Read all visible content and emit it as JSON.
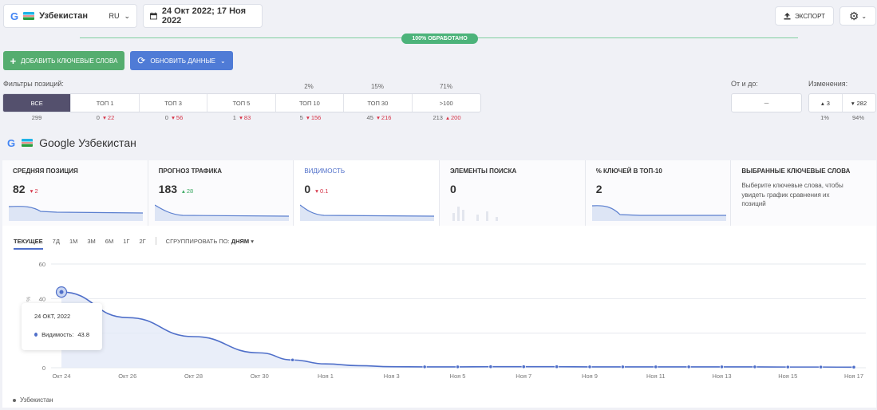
{
  "topbar": {
    "engine_logo": "G",
    "region": "Узбекистан",
    "lang": "RU",
    "date_range": "24 Окт 2022; 17 Ноя 2022",
    "export_label": "ЭКСПОРТ"
  },
  "progress": {
    "label": "100% ОБРАБОТАНО",
    "value_percent": 100
  },
  "actions": {
    "add_keywords": "ДОБАВИТЬ КЛЮЧЕВЫЕ СЛОВА",
    "update_data": "ОБНОВИТЬ ДАННЫЕ"
  },
  "filters": {
    "title": "Фильтры позиций:",
    "percents": [
      "2%",
      "15%",
      "71%"
    ],
    "items": [
      {
        "label": "ВСЕ",
        "count": "299",
        "change": ""
      },
      {
        "label": "ТОП 1",
        "count": "0",
        "change": "22"
      },
      {
        "label": "ТОП 3",
        "count": "0",
        "change": "56"
      },
      {
        "label": "ТОП 5",
        "count": "1",
        "change": "83"
      },
      {
        "label": "ТОП 10",
        "count": "5",
        "change": "156"
      },
      {
        "label": "ТОП 30",
        "count": "45",
        "change": "216"
      },
      {
        "label": ">100",
        "count": "213",
        "change": "200"
      }
    ],
    "range_label": "От и до:",
    "range_sep": "–",
    "changes_label": "Изменения:",
    "changes": [
      {
        "value": "3",
        "percent": "1%"
      },
      {
        "value": "282",
        "percent": "94%"
      }
    ]
  },
  "engine_title": "Google Узбекистан",
  "metrics": [
    {
      "title": "СРЕДНЯЯ ПОЗИЦИЯ",
      "value": "82",
      "change": "2",
      "dir": "down"
    },
    {
      "title": "ПРОГНОЗ ТРАФИКА",
      "value": "183",
      "change": "28",
      "dir": "up"
    },
    {
      "title": "ВИДИМОСТЬ",
      "value": "0",
      "change": "0.1",
      "dir": "down"
    },
    {
      "title": "ЭЛЕМЕНТЫ ПОИСКА",
      "value": "0",
      "change": "",
      "dir": ""
    },
    {
      "title": "% КЛЮЧЕЙ В ТОП-10",
      "value": "2",
      "change": "",
      "dir": ""
    },
    {
      "title": "ВЫБРАННЫЕ КЛЮЧЕВЫЕ СЛОВА",
      "desc": "Выберите ключевые слова, чтобы увидеть график сравнения их позиций"
    }
  ],
  "periods": [
    "ТЕКУЩЕЕ",
    "7Д",
    "1М",
    "3М",
    "6М",
    "1Г",
    "2Г"
  ],
  "group_by": {
    "label": "СГРУППИРОВАТЬ ПО:",
    "value": "ДНЯМ"
  },
  "tooltip": {
    "date": "24 ОКТ, 2022",
    "series": "Видимость:",
    "value": "43.8"
  },
  "colors": {
    "accent": "#4f6fc9",
    "green": "#55ad6f",
    "filter_active": "#54506d",
    "down": "#d63447",
    "up": "#3aa862"
  },
  "chart_data": {
    "type": "area",
    "ylabel": "%",
    "ylim": [
      0,
      60
    ],
    "yticks": [
      0,
      20,
      40,
      60
    ],
    "x_labels": [
      "Окт 24",
      "Окт 26",
      "Окт 28",
      "Окт 30",
      "Ноя 1",
      "Ноя 3",
      "Ноя 5",
      "Ноя 7",
      "Ноя 9",
      "Ноя 11",
      "Ноя 13",
      "Ноя 15",
      "Ноя 17"
    ],
    "grid": true,
    "legend": "bottom-left",
    "series": [
      {
        "name": "Узбекистан",
        "x": [
          0,
          4,
          8,
          12,
          14,
          16,
          18,
          20,
          22,
          24,
          26,
          28,
          30,
          32,
          34,
          36,
          38,
          40,
          42,
          44,
          46,
          48
        ],
        "values": [
          43.8,
          29,
          18,
          8.6,
          4.5,
          2.2,
          1.2,
          0.6,
          0.5,
          0.5,
          0.6,
          0.6,
          0.6,
          0.5,
          0.5,
          0.5,
          0.5,
          0.5,
          0.5,
          0.4,
          0.4,
          0.3
        ]
      }
    ],
    "markers_x": [
      0,
      14,
      22,
      24,
      26,
      28,
      30,
      32,
      34,
      36,
      38,
      40,
      42,
      44,
      46,
      48
    ]
  }
}
